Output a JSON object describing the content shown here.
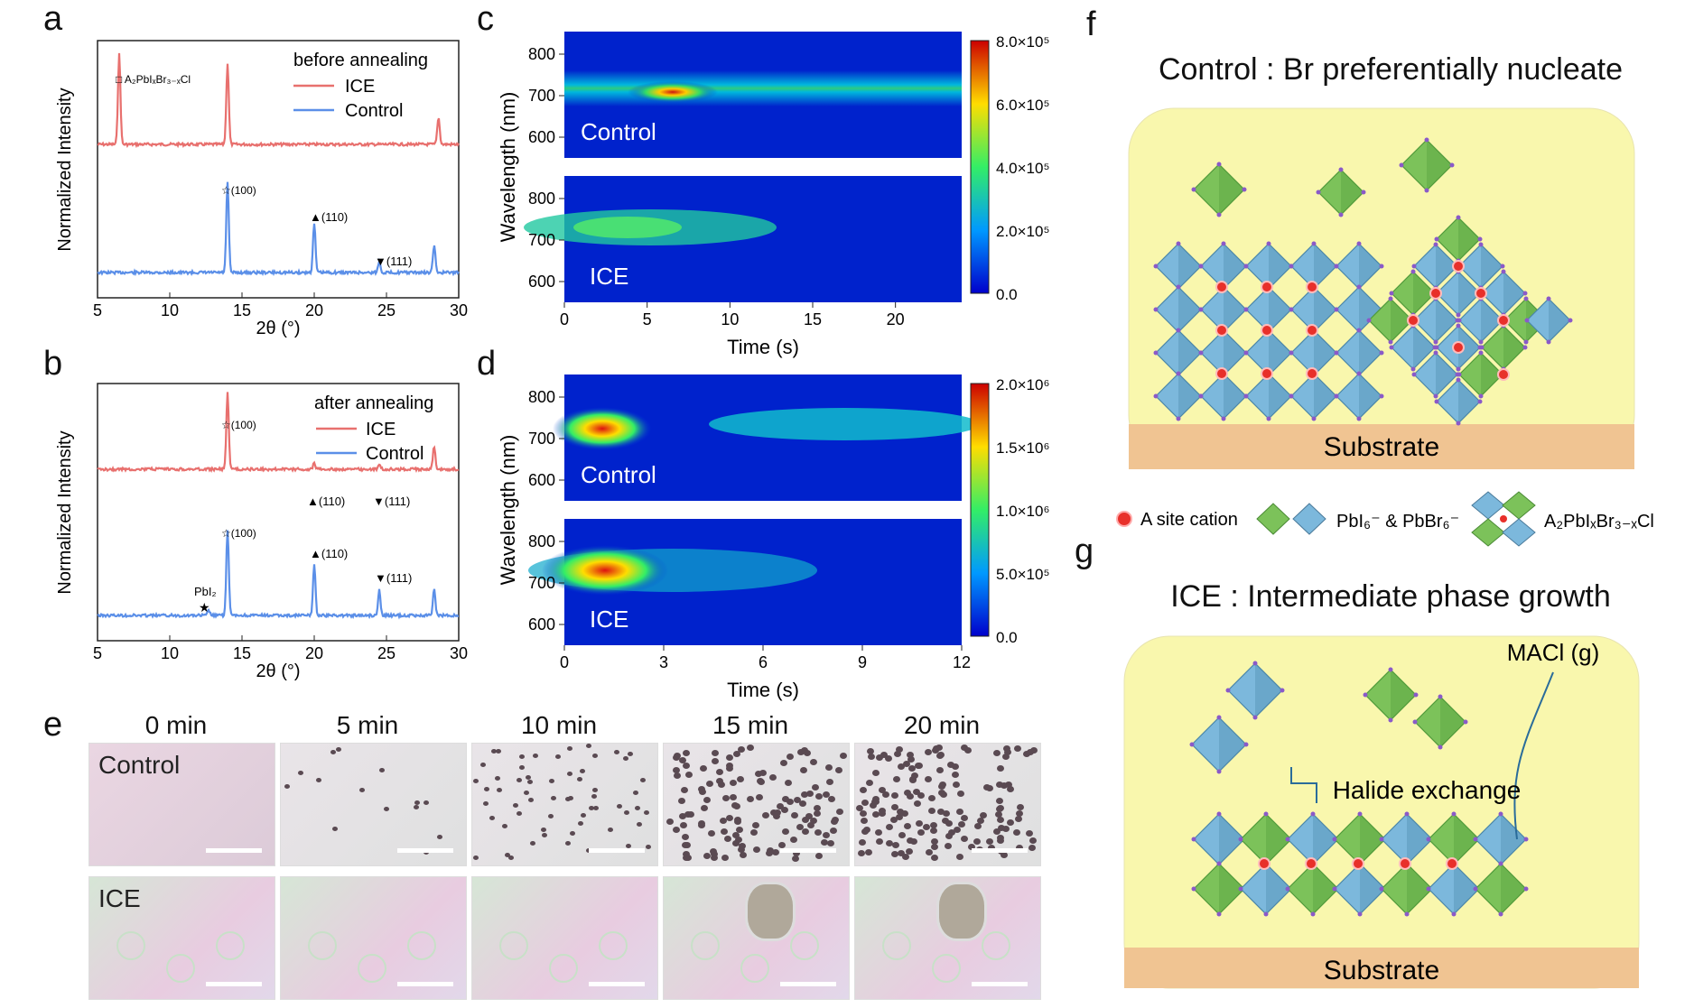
{
  "letters": {
    "a": "a",
    "b": "b",
    "c": "c",
    "d": "d",
    "e": "e",
    "f": "f",
    "g": "g"
  },
  "panel_a": {
    "legend_title": "before annealing",
    "legend_ice": "ICE",
    "legend_control": "Control",
    "impurity_label": "□ A₂PbIₓBr₃₋ₓCl",
    "peak_100": "☆(100)",
    "peak_110": "▲(110)",
    "peak_111": "▼(111)",
    "ylabel": "Normalized Intensity",
    "xlabel": "2θ (°)",
    "xticks": [
      "5",
      "10",
      "15",
      "20",
      "25",
      "30"
    ]
  },
  "panel_b": {
    "legend_title": "after annealing",
    "legend_ice": "ICE",
    "legend_control": "Control",
    "peak_100_ice": "☆(100)",
    "peak_110_ice": "▲(110)",
    "peak_111_ice": "▼(111)",
    "peak_100_ctrl": "☆(100)",
    "peak_110_ctrl": "▲(110)",
    "peak_111_ctrl": "▼(111)",
    "pbi2_label": "PbI₂",
    "pbi2_mark": "★",
    "ylabel": "Normalized Intensity",
    "xlabel": "2θ (°)",
    "xticks": [
      "5",
      "10",
      "15",
      "20",
      "25",
      "30"
    ]
  },
  "panel_c": {
    "ylabel": "Wavelength (nm)",
    "xlabel": "Time (s)",
    "yticks": [
      "800",
      "700",
      "600"
    ],
    "xticks": [
      "0",
      "5",
      "10",
      "15",
      "20"
    ],
    "top_label": "Control",
    "bottom_label": "ICE",
    "cbar": [
      "8.0×10⁵",
      "6.0×10⁵",
      "4.0×10⁵",
      "2.0×10⁵",
      "0.0"
    ]
  },
  "panel_d": {
    "ylabel": "Wavelength (nm)",
    "xlabel": "Time (s)",
    "yticks": [
      "800",
      "700",
      "600"
    ],
    "xticks": [
      "0",
      "3",
      "6",
      "9",
      "12"
    ],
    "top_label": "Control",
    "bottom_label": "ICE",
    "cbar": [
      "2.0×10⁶",
      "1.5×10⁶",
      "1.0×10⁶",
      "5.0×10⁵",
      "0.0"
    ]
  },
  "panel_e": {
    "times": [
      "0 min",
      "5 min",
      "10 min",
      "15 min",
      "20 min"
    ],
    "row_control": "Control",
    "row_ice": "ICE"
  },
  "panel_f": {
    "title": "Control : Br preferentially nucleate",
    "substrate": "Substrate"
  },
  "legend": {
    "a_site": "A site cation",
    "pb_halide": "PbI₆⁻ & PbBr₆⁻",
    "intermediate": "A₂PbIₓBr₃₋ₓCl"
  },
  "panel_g": {
    "title": "ICE : Intermediate phase growth",
    "maci": "MACl (g)",
    "halide_exchange": "Halide exchange",
    "substrate": "Substrate"
  },
  "chart_data": [
    {
      "type": "line",
      "title": "before annealing",
      "xlabel": "2θ (°)",
      "ylabel": "Normalized Intensity",
      "xlim": [
        5,
        30
      ],
      "series": [
        {
          "name": "ICE",
          "color": "#e8706e",
          "peaks": [
            {
              "x": 6.5,
              "y": 1.0
            },
            {
              "x": 14.0,
              "y": 0.9
            },
            {
              "x": 28.6,
              "y": 0.3
            }
          ]
        },
        {
          "name": "Control",
          "color": "#5b8fe8",
          "peaks": [
            {
              "x": 14.0,
              "y": 1.0
            },
            {
              "x": 20.0,
              "y": 0.55
            },
            {
              "x": 24.5,
              "y": 0.12
            },
            {
              "x": 28.3,
              "y": 0.3
            }
          ]
        }
      ]
    },
    {
      "type": "line",
      "title": "after annealing",
      "xlabel": "2θ (°)",
      "ylabel": "Normalized Intensity",
      "xlim": [
        5,
        30
      ],
      "series": [
        {
          "name": "ICE",
          "color": "#e8706e",
          "peaks": [
            {
              "x": 14.0,
              "y": 1.0
            },
            {
              "x": 20.0,
              "y": 0.08
            },
            {
              "x": 24.5,
              "y": 0.06
            },
            {
              "x": 28.3,
              "y": 0.3
            }
          ]
        },
        {
          "name": "Control",
          "color": "#5b8fe8",
          "peaks": [
            {
              "x": 12.7,
              "y": 0.06
            },
            {
              "x": 14.0,
              "y": 1.0
            },
            {
              "x": 20.0,
              "y": 0.6
            },
            {
              "x": 24.5,
              "y": 0.3
            },
            {
              "x": 28.3,
              "y": 0.3
            }
          ]
        }
      ]
    },
    {
      "type": "heatmap",
      "xlabel": "Time (s)",
      "ylabel": "Wavelength (nm)",
      "xlim": [
        0,
        24
      ],
      "ylim": [
        600,
        850
      ],
      "colorbar_range": [
        0,
        800000
      ],
      "maps": [
        {
          "name": "Control",
          "center_wavelength": 725,
          "max_time": 6
        },
        {
          "name": "ICE",
          "center_wavelength": 750,
          "max_time": 3
        }
      ]
    },
    {
      "type": "heatmap",
      "xlabel": "Time (s)",
      "ylabel": "Wavelength (nm)",
      "xlim": [
        0,
        12
      ],
      "ylim": [
        600,
        850
      ],
      "colorbar_range": [
        0,
        2000000
      ],
      "maps": [
        {
          "name": "Control",
          "center_wavelength": 735,
          "max_time": 1.2
        },
        {
          "name": "ICE",
          "center_wavelength": 740,
          "max_time": 1.2
        }
      ]
    }
  ]
}
